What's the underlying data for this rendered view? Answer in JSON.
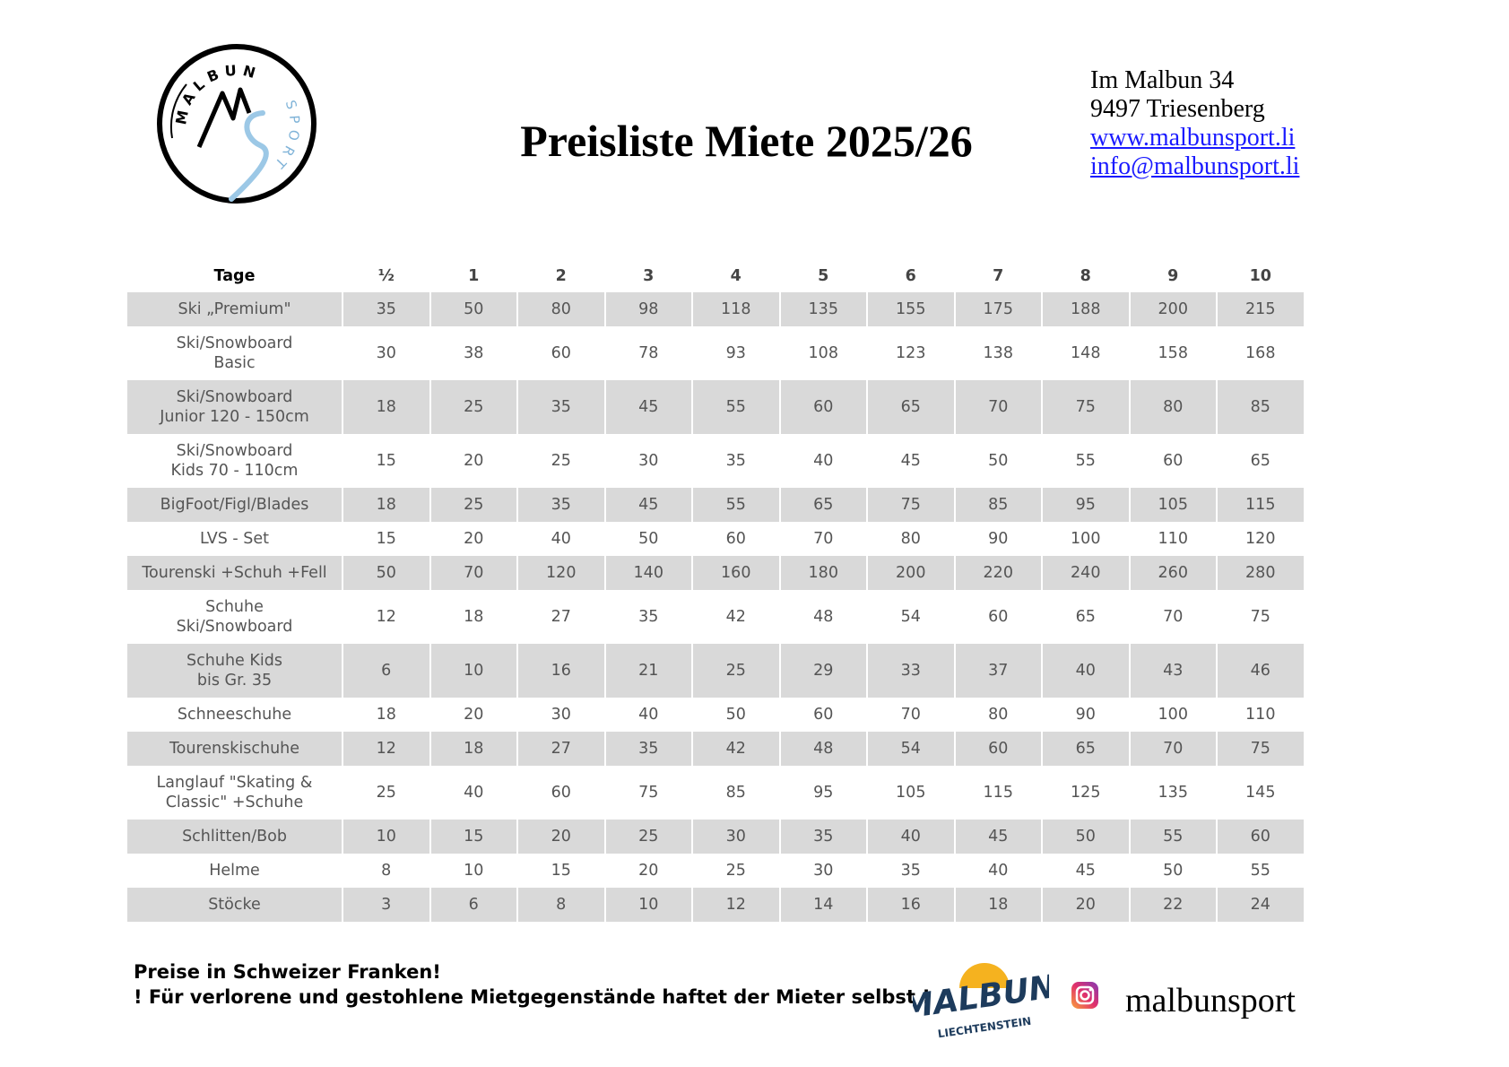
{
  "header": {
    "title": "Preisliste Miete 2025/26",
    "address": [
      "Im Malbun 34",
      "9497 Triesenberg"
    ],
    "links": [
      "www.malbunsport.li",
      "info@malbunsport.li"
    ],
    "logo": {
      "top": "MALBUN",
      "side": "SPORT"
    }
  },
  "table": {
    "columns": [
      "Tage",
      "½",
      "1",
      "2",
      "3",
      "4",
      "5",
      "6",
      "7",
      "8",
      "9",
      "10"
    ],
    "rows": [
      {
        "label": [
          "Ski „Premium\""
        ],
        "values": [
          35,
          50,
          80,
          98,
          118,
          135,
          155,
          175,
          188,
          200,
          215
        ]
      },
      {
        "label": [
          "Ski/Snowboard",
          "Basic"
        ],
        "values": [
          30,
          38,
          60,
          78,
          93,
          108,
          123,
          138,
          148,
          158,
          168
        ]
      },
      {
        "label": [
          "Ski/Snowboard",
          "Junior 120 - 150cm"
        ],
        "values": [
          18,
          25,
          35,
          45,
          55,
          60,
          65,
          70,
          75,
          80,
          85
        ]
      },
      {
        "label": [
          "Ski/Snowboard",
          "Kids 70 - 110cm"
        ],
        "values": [
          15,
          20,
          25,
          30,
          35,
          40,
          45,
          50,
          55,
          60,
          65
        ]
      },
      {
        "label": [
          "BigFoot/Figl/Blades"
        ],
        "values": [
          18,
          25,
          35,
          45,
          55,
          65,
          75,
          85,
          95,
          105,
          115
        ]
      },
      {
        "label": [
          "LVS - Set"
        ],
        "values": [
          15,
          20,
          40,
          50,
          60,
          70,
          80,
          90,
          100,
          110,
          120
        ]
      },
      {
        "label": [
          "Tourenski +Schuh +Fell"
        ],
        "values": [
          50,
          70,
          120,
          140,
          160,
          180,
          200,
          220,
          240,
          260,
          280
        ]
      },
      {
        "label": [
          "Schuhe",
          "Ski/Snowboard"
        ],
        "values": [
          12,
          18,
          27,
          35,
          42,
          48,
          54,
          60,
          65,
          70,
          75
        ]
      },
      {
        "label": [
          "Schuhe Kids",
          "bis Gr. 35"
        ],
        "values": [
          6,
          10,
          16,
          21,
          25,
          29,
          33,
          37,
          40,
          43,
          46
        ]
      },
      {
        "label": [
          "Schneeschuhe"
        ],
        "values": [
          18,
          20,
          30,
          40,
          50,
          60,
          70,
          80,
          90,
          100,
          110
        ]
      },
      {
        "label": [
          "Tourenskischuhe"
        ],
        "values": [
          12,
          18,
          27,
          35,
          42,
          48,
          54,
          60,
          65,
          70,
          75
        ]
      },
      {
        "label": [
          "Langlauf \"Skating &",
          "Classic\" +Schuhe"
        ],
        "values": [
          25,
          40,
          60,
          75,
          85,
          95,
          105,
          115,
          125,
          135,
          145
        ]
      },
      {
        "label": [
          "Schlitten/Bob"
        ],
        "values": [
          10,
          15,
          20,
          25,
          30,
          35,
          40,
          45,
          50,
          55,
          60
        ]
      },
      {
        "label": [
          "Helme"
        ],
        "values": [
          8,
          10,
          15,
          20,
          25,
          30,
          35,
          40,
          45,
          50,
          55
        ]
      },
      {
        "label": [
          "Stöcke"
        ],
        "values": [
          3,
          6,
          8,
          10,
          12,
          14,
          16,
          18,
          20,
          22,
          24
        ]
      }
    ]
  },
  "footer": {
    "notes": [
      "Preise in  Schweizer Franken!",
      "! Für verlorene und gestohlene Mietgegenstände haftet der Mieter selbst !"
    ],
    "brand": {
      "name": "MALBUN",
      "country": "LIECHTENSTEIN"
    },
    "instagram": "malbunsport"
  }
}
